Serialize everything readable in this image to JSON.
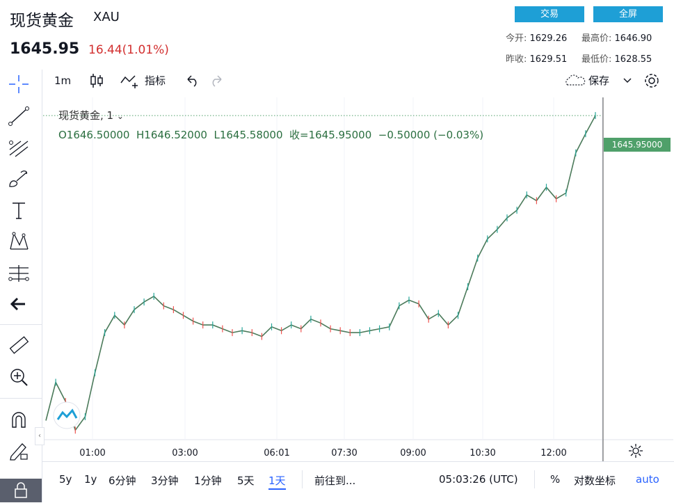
{
  "header": {
    "title": "现货黄金",
    "symbol": "XAU",
    "price": "1645.95",
    "change": "16.44(1.01%)",
    "buttons": {
      "trade": "交易",
      "fullscreen": "全屏"
    },
    "stats": {
      "open_label": "今开:",
      "open": "1629.26",
      "high_label": "最高价:",
      "high": "1646.90",
      "prev_close_label": "昨收:",
      "prev_close": "1629.51",
      "low_label": "最低价:",
      "low": "1628.55"
    }
  },
  "toolbar": {
    "interval": "1m",
    "indicators": "指标",
    "save": "保存"
  },
  "legend": {
    "symbol_interval": "现货黄金, 1",
    "ohlc": "O1646.50000  H1646.52000  L1645.58000  收=1645.95000  −0.50000 (−0.03%)"
  },
  "last_price_tag": "1645.95000",
  "bottom": {
    "ranges": [
      "5y",
      "1y",
      "6分钟",
      "3分钟",
      "1分钟",
      "5天",
      "1天"
    ],
    "goto": "前往到...",
    "clock": "05:03:26 (UTC)",
    "percent": "%",
    "log": "对数坐标",
    "auto": "auto"
  },
  "colors": {
    "up": "#26a69a",
    "down": "#ef5350",
    "accent": "#1e9fd6",
    "red": "#d22f2f",
    "tag": "#4fa06a"
  },
  "chart_data": {
    "type": "line",
    "title": "",
    "xlabel": "",
    "ylabel": "",
    "x_ticks": [
      "01:00",
      "03:00",
      "06:01",
      "07:30",
      "09:00",
      "10:30",
      "12:00"
    ],
    "series": [
      {
        "values": [
          1630.0,
          1632.0,
          1631.0,
          1629.5,
          1630.2,
          1632.5,
          1634.6,
          1635.5,
          1635.0,
          1635.8,
          1636.2,
          1636.5,
          1636.0,
          1635.8,
          1635.5,
          1635.2,
          1635.0,
          1635.0,
          1634.8,
          1634.6,
          1634.7,
          1634.6,
          1634.4,
          1634.9,
          1634.7,
          1635.0,
          1634.8,
          1635.3,
          1635.1,
          1634.8,
          1634.7,
          1634.6,
          1634.6,
          1634.7,
          1634.8,
          1634.9,
          1636.0,
          1636.3,
          1636.1,
          1635.3,
          1635.6,
          1635.0,
          1635.5,
          1637.0,
          1638.5,
          1639.5,
          1640.0,
          1640.6,
          1641.0,
          1641.8,
          1641.5,
          1642.2,
          1641.6,
          1641.9,
          1644.0,
          1645.0,
          1645.95
        ],
        "ylim": [
          1629.0,
          1646.9
        ]
      }
    ]
  }
}
